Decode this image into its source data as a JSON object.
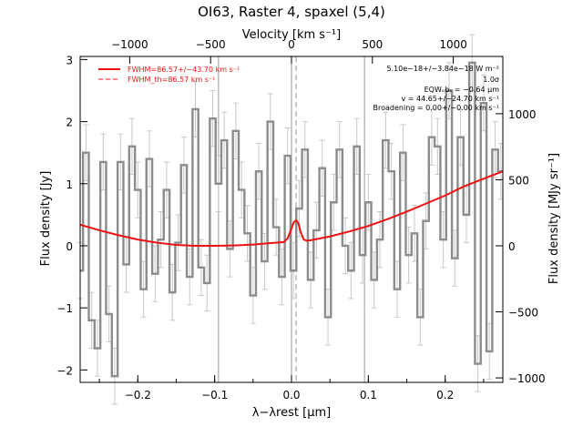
{
  "chart_data": {
    "type": "line",
    "title": "OI63, Raster 4, spaxel (5,4)",
    "xlabel": "λ−λrest [μm]",
    "ylabel_left": "Flux density [Jy]",
    "ylabel_right": "Flux density [MJy sr⁻¹]",
    "xlabel_top": "Velocity [km s⁻¹]",
    "xlim": [
      -0.275,
      0.275
    ],
    "ylim": [
      -2.2,
      3.05
    ],
    "x_ticks": [
      "−0.2",
      "−0.1",
      "0.0",
      "0.1",
      "0.2"
    ],
    "x_tick_values": [
      -0.2,
      -0.1,
      0.0,
      0.1,
      0.2
    ],
    "y_ticks": [
      "−2",
      "−1",
      "0",
      "1",
      "2",
      "3"
    ],
    "y_tick_values": [
      -2,
      -1,
      0,
      1,
      2,
      3
    ],
    "top_ticks": [
      "−1000",
      "−500",
      "0",
      "500",
      "1000"
    ],
    "top_tick_values": [
      -1000,
      -500,
      0,
      500,
      1000
    ],
    "velocity_per_um": 4750,
    "right_ticks": [
      "−1000",
      "−500",
      "0",
      "500",
      "1000"
    ],
    "right_tick_values": [
      -1000,
      -500,
      0,
      500,
      1000
    ],
    "right_scale": 470,
    "vlines": [
      -0.095,
      0.0,
      0.095
    ],
    "dashed_vline": 0.006,
    "legend": [
      {
        "text": "FWHM=86.57+/−43.70 km s⁻¹",
        "style": "solid"
      },
      {
        "text": "FWHM_th=86.57 km s⁻¹",
        "style": "dashed"
      }
    ],
    "annotations": [
      "5.10e−18+/−3.84e−18 W m⁻²",
      "1.0σ",
      "EQWₒbₛ = −0.64 μm",
      "v = 44.65+/−24.70 km s⁻¹",
      "Broadening = 0.00+/−0.00 km s⁻¹"
    ],
    "series": [
      {
        "style": "step",
        "x": [
          -0.275,
          -0.2675,
          -0.26,
          -0.2525,
          -0.245,
          -0.2375,
          -0.23,
          -0.2225,
          -0.215,
          -0.2075,
          -0.2,
          -0.1925,
          -0.185,
          -0.1775,
          -0.17,
          -0.1625,
          -0.155,
          -0.1475,
          -0.14,
          -0.1325,
          -0.125,
          -0.1175,
          -0.11,
          -0.1025,
          -0.095,
          -0.0875,
          -0.08,
          -0.0725,
          -0.065,
          -0.0575,
          -0.05,
          -0.0425,
          -0.035,
          -0.0275,
          -0.02,
          -0.0125,
          -0.005,
          0.0025,
          0.01,
          0.0175,
          0.025,
          0.0325,
          0.04,
          0.0475,
          0.055,
          0.0625,
          0.07,
          0.0775,
          0.085,
          0.0925,
          0.1,
          0.1075,
          0.115,
          0.1225,
          0.13,
          0.1375,
          0.145,
          0.1525,
          0.16,
          0.1675,
          0.175,
          0.1825,
          0.19,
          0.1975,
          0.205,
          0.2125,
          0.22,
          0.2275,
          0.235,
          0.2425,
          0.25,
          0.2575,
          0.265,
          0.2725
        ],
        "y": [
          -0.4,
          1.5,
          -1.2,
          -1.65,
          1.35,
          -1.1,
          -2.1,
          1.35,
          -0.3,
          1.6,
          0.9,
          -0.7,
          1.4,
          -0.45,
          0.1,
          0.9,
          -0.75,
          0.05,
          1.3,
          -0.5,
          2.2,
          -0.35,
          -0.6,
          2.05,
          1.0,
          1.7,
          -0.05,
          1.85,
          0.9,
          0.2,
          -0.8,
          1.2,
          -0.25,
          2.0,
          0.3,
          -0.5,
          1.45,
          -0.4,
          0.6,
          1.55,
          -0.55,
          0.25,
          1.25,
          -1.15,
          0.7,
          1.55,
          0.0,
          -0.4,
          1.6,
          -0.15,
          0.7,
          -0.55,
          0.1,
          1.7,
          1.2,
          -0.7,
          1.5,
          -0.15,
          0.2,
          -1.15,
          0.4,
          1.75,
          1.6,
          0.1,
          2.5,
          -0.2,
          1.75,
          0.5,
          2.95,
          -1.9,
          2.3,
          -1.7,
          1.55,
          1.2
        ],
        "err": 0.45,
        "color": "#8c8c8c"
      },
      {
        "style": "line",
        "name_ref": "fit",
        "x": [
          -0.275,
          -0.25,
          -0.225,
          -0.2,
          -0.175,
          -0.15,
          -0.125,
          -0.1,
          -0.075,
          -0.05,
          -0.025,
          -0.01,
          -0.005,
          0.0,
          0.003,
          0.006,
          0.009,
          0.012,
          0.016,
          0.02,
          0.025,
          0.05,
          0.075,
          0.1,
          0.125,
          0.15,
          0.175,
          0.2,
          0.225,
          0.25,
          0.275
        ],
        "y": [
          0.34,
          0.25,
          0.17,
          0.1,
          0.05,
          0.015,
          0.0,
          0.0,
          0.005,
          0.02,
          0.045,
          0.06,
          0.12,
          0.28,
          0.38,
          0.41,
          0.36,
          0.22,
          0.1,
          0.08,
          0.09,
          0.15,
          0.23,
          0.32,
          0.43,
          0.55,
          0.68,
          0.81,
          0.96,
          1.08,
          1.2
        ],
        "color": "#ee1111"
      }
    ]
  }
}
